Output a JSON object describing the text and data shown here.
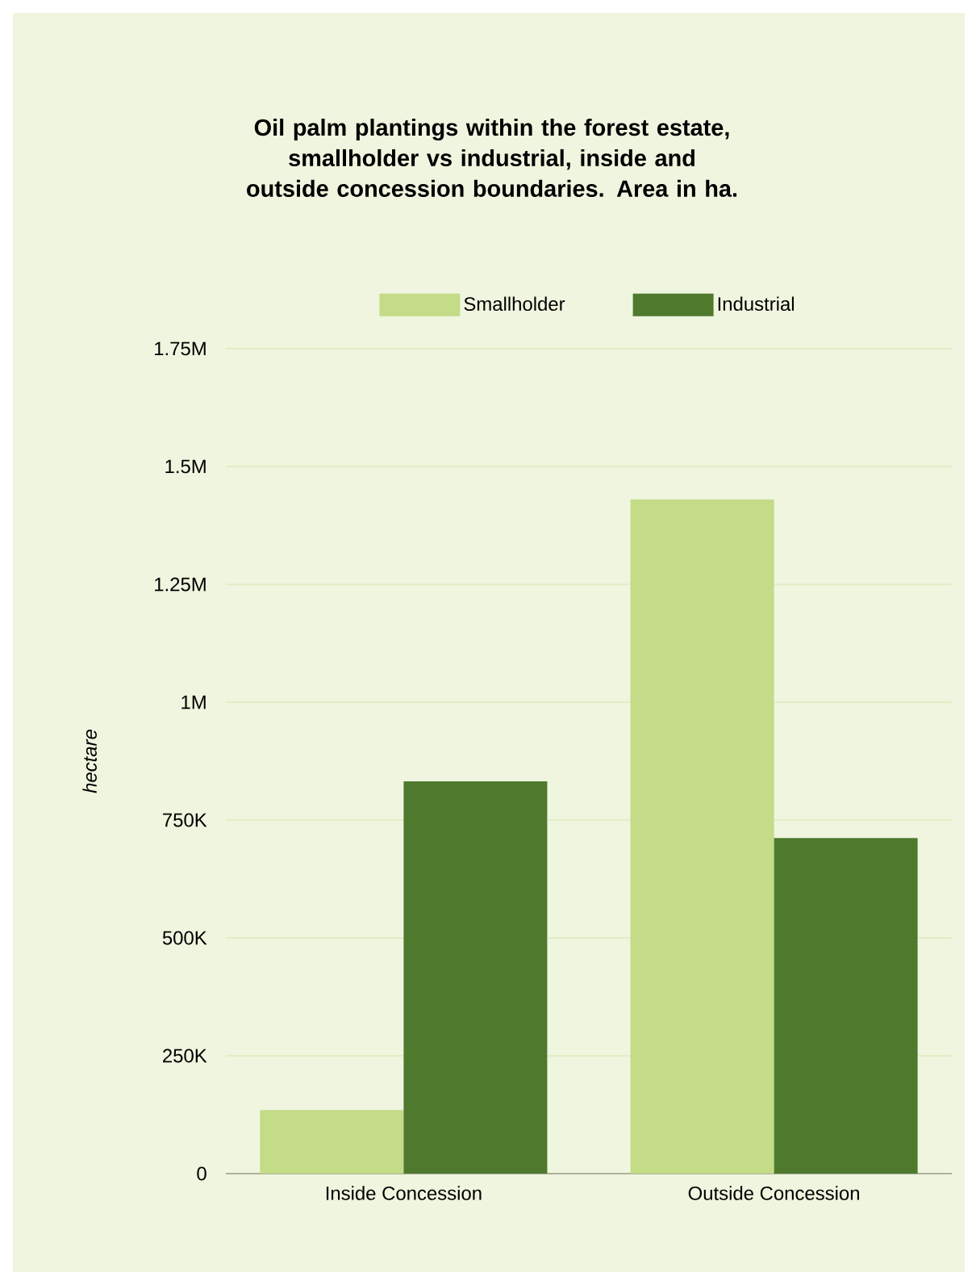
{
  "chart_data": {
    "type": "bar",
    "title": "Oil palm plantings within the forest estate, smallholder vs industrial, inside and outside concession boundaries. Area in ha.",
    "ylabel": "hectare",
    "categories": [
      "Inside Concession",
      "Outside Concession"
    ],
    "series": [
      {
        "name": "Smallholder",
        "color": "#c4db87",
        "values": [
          135000,
          1430000
        ]
      },
      {
        "name": "Industrial",
        "color": "#4f7a2e",
        "values": [
          832000,
          712000
        ]
      }
    ],
    "ylim": [
      0,
      1750000
    ],
    "yticks": [
      0,
      {
        "value": 250000,
        "label": "250K"
      },
      {
        "value": 500000,
        "label": "500K"
      },
      {
        "value": 750000,
        "label": "750K"
      },
      {
        "value": 1000000,
        "label": "1M"
      },
      {
        "value": 1250000,
        "label": "1.25M"
      },
      {
        "value": 1500000,
        "label": "1.5M"
      },
      {
        "value": 1750000,
        "label": "1.75M"
      }
    ],
    "grid": "y",
    "legend": "top"
  }
}
